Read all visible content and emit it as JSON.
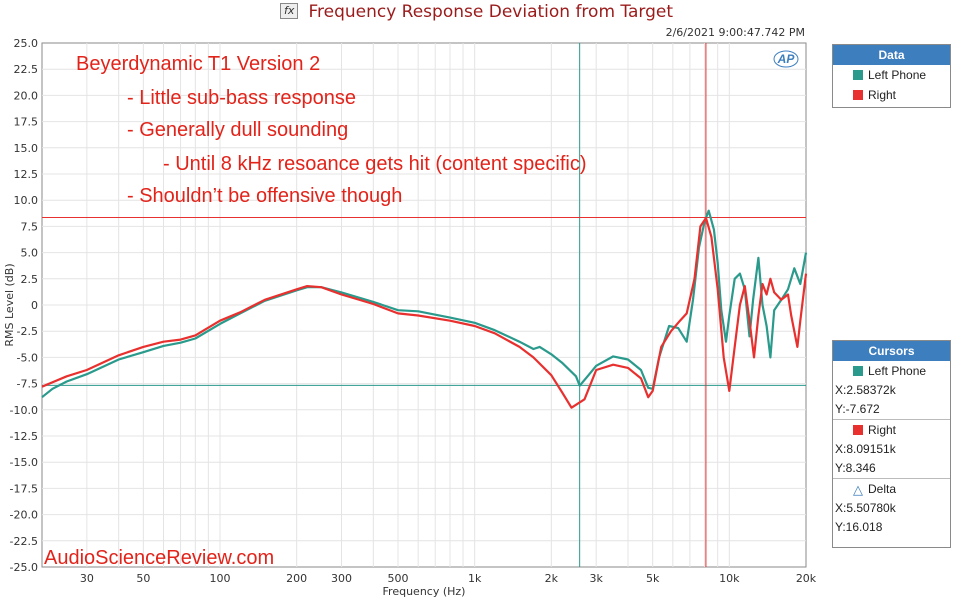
{
  "title": "Frequency Response Deviation from Target",
  "title_icon": "fx",
  "timestamp": "2/6/2021 9:00:47.742 PM",
  "ap_logo": "AP",
  "watermark": "AudioScienceReview.com",
  "annotations": [
    "Beyerdynamic T1 Version 2",
    "- Little sub-bass response",
    "- Generally dull sounding",
    "- Until 8 kHz resoance gets hit (content specific)",
    "- Shouldn’t be offensive though"
  ],
  "legend": {
    "title": "Data",
    "items": [
      {
        "label": "Left Phone",
        "color": "#2a9a8c"
      },
      {
        "label": "Right",
        "color": "#e8312f"
      }
    ]
  },
  "cursors": {
    "title": "Cursors",
    "groups": [
      {
        "label": "Left Phone",
        "color": "#2a9a8c",
        "x": "X:2.58372k",
        "y": "Y:-7.672"
      },
      {
        "label": "Right",
        "color": "#e8312f",
        "x": "X:8.09151k",
        "y": "Y:8.346"
      },
      {
        "label": "Delta",
        "icon": "delta-triangle-icon",
        "x": "X:5.50780k",
        "y": "Y:16.018"
      }
    ]
  },
  "chart_data": {
    "type": "line",
    "xlabel": "Frequency (Hz)",
    "ylabel": "RMS Level (dB)",
    "xscale": "log",
    "xlim": [
      20,
      20000
    ],
    "ylim": [
      -25,
      25
    ],
    "x_ticks": [
      {
        "v": 30,
        "label": "30"
      },
      {
        "v": 50,
        "label": "50"
      },
      {
        "v": 100,
        "label": "100"
      },
      {
        "v": 200,
        "label": "200"
      },
      {
        "v": 300,
        "label": "300"
      },
      {
        "v": 500,
        "label": "500"
      },
      {
        "v": 1000,
        "label": "1k"
      },
      {
        "v": 2000,
        "label": "2k"
      },
      {
        "v": 3000,
        "label": "3k"
      },
      {
        "v": 5000,
        "label": "5k"
      },
      {
        "v": 10000,
        "label": "10k"
      },
      {
        "v": 20000,
        "label": "20k"
      }
    ],
    "y_ticks": [
      {
        "v": 25,
        "label": "25.0"
      },
      {
        "v": 22.5,
        "label": "22.5"
      },
      {
        "v": 20,
        "label": "20.0"
      },
      {
        "v": 17.5,
        "label": "17.5"
      },
      {
        "v": 15,
        "label": "15.0"
      },
      {
        "v": 12.5,
        "label": "12.5"
      },
      {
        "v": 10,
        "label": "10.0"
      },
      {
        "v": 7.5,
        "label": "7.5"
      },
      {
        "v": 5,
        "label": "5.0"
      },
      {
        "v": 2.5,
        "label": "2.5"
      },
      {
        "v": 0,
        "label": "0"
      },
      {
        "v": -2.5,
        "label": "-2.5"
      },
      {
        "v": -5,
        "label": "-5.0"
      },
      {
        "v": -7.5,
        "label": "-7.5"
      },
      {
        "v": -10,
        "label": "-10.0"
      },
      {
        "v": -12.5,
        "label": "-12.5"
      },
      {
        "v": -15,
        "label": "-15.0"
      },
      {
        "v": -17.5,
        "label": "-17.5"
      },
      {
        "v": -20,
        "label": "-20.0"
      },
      {
        "v": -22.5,
        "label": "-22.5"
      },
      {
        "v": -25,
        "label": "-25.0"
      }
    ],
    "cursor_lines": [
      {
        "x": 2583.72,
        "y": -7.672,
        "color": "#2a9a8c"
      },
      {
        "x": 8091.51,
        "y": 8.346,
        "color": "#e8312f"
      }
    ],
    "series": [
      {
        "name": "Left Phone",
        "color": "#2a9a8c",
        "points": [
          [
            20,
            -8.8
          ],
          [
            22,
            -8.0
          ],
          [
            25,
            -7.3
          ],
          [
            30,
            -6.6
          ],
          [
            40,
            -5.2
          ],
          [
            50,
            -4.5
          ],
          [
            60,
            -3.9
          ],
          [
            70,
            -3.6
          ],
          [
            80,
            -3.2
          ],
          [
            100,
            -1.8
          ],
          [
            120,
            -0.8
          ],
          [
            150,
            0.4
          ],
          [
            200,
            1.4
          ],
          [
            220,
            1.7
          ],
          [
            250,
            1.7
          ],
          [
            300,
            1.2
          ],
          [
            400,
            0.3
          ],
          [
            500,
            -0.5
          ],
          [
            600,
            -0.6
          ],
          [
            800,
            -1.2
          ],
          [
            1000,
            -1.7
          ],
          [
            1200,
            -2.4
          ],
          [
            1500,
            -3.5
          ],
          [
            1700,
            -4.2
          ],
          [
            1800,
            -4.0
          ],
          [
            2000,
            -4.7
          ],
          [
            2200,
            -5.5
          ],
          [
            2500,
            -6.8
          ],
          [
            2584,
            -7.7
          ],
          [
            2800,
            -6.7
          ],
          [
            3000,
            -5.8
          ],
          [
            3500,
            -4.9
          ],
          [
            4000,
            -5.2
          ],
          [
            4500,
            -6.2
          ],
          [
            4800,
            -7.9
          ],
          [
            5000,
            -8.0
          ],
          [
            5300,
            -5.0
          ],
          [
            5800,
            -2.0
          ],
          [
            6300,
            -2.2
          ],
          [
            6800,
            -3.5
          ],
          [
            7200,
            0.5
          ],
          [
            7600,
            5.5
          ],
          [
            8000,
            8.0
          ],
          [
            8300,
            9.0
          ],
          [
            8700,
            7.2
          ],
          [
            9000,
            4.0
          ],
          [
            9300,
            -0.5
          ],
          [
            9700,
            -3.5
          ],
          [
            10000,
            -1.0
          ],
          [
            10500,
            2.5
          ],
          [
            11000,
            3.0
          ],
          [
            11500,
            1.5
          ],
          [
            12000,
            -3.0
          ],
          [
            12400,
            0.5
          ],
          [
            13000,
            4.5
          ],
          [
            13500,
            0.0
          ],
          [
            14000,
            -2.0
          ],
          [
            14500,
            -5.0
          ],
          [
            15000,
            -0.5
          ],
          [
            16000,
            0.5
          ],
          [
            17000,
            1.5
          ],
          [
            18000,
            3.5
          ],
          [
            19000,
            2.0
          ],
          [
            20000,
            5.0
          ]
        ]
      },
      {
        "name": "Right",
        "color": "#e8312f",
        "points": [
          [
            20,
            -7.8
          ],
          [
            25,
            -6.8
          ],
          [
            30,
            -6.2
          ],
          [
            40,
            -4.8
          ],
          [
            50,
            -4.0
          ],
          [
            60,
            -3.5
          ],
          [
            70,
            -3.3
          ],
          [
            80,
            -2.9
          ],
          [
            100,
            -1.5
          ],
          [
            120,
            -0.7
          ],
          [
            150,
            0.5
          ],
          [
            200,
            1.5
          ],
          [
            220,
            1.8
          ],
          [
            250,
            1.7
          ],
          [
            300,
            1.0
          ],
          [
            400,
            0.1
          ],
          [
            500,
            -0.8
          ],
          [
            600,
            -1.0
          ],
          [
            800,
            -1.5
          ],
          [
            1000,
            -2.0
          ],
          [
            1200,
            -2.7
          ],
          [
            1500,
            -4.0
          ],
          [
            1700,
            -5.0
          ],
          [
            2000,
            -6.7
          ],
          [
            2200,
            -8.3
          ],
          [
            2400,
            -9.8
          ],
          [
            2700,
            -9.0
          ],
          [
            3000,
            -6.2
          ],
          [
            3500,
            -5.7
          ],
          [
            4000,
            -6.0
          ],
          [
            4500,
            -7.0
          ],
          [
            4800,
            -8.8
          ],
          [
            5000,
            -8.2
          ],
          [
            5400,
            -4.0
          ],
          [
            5900,
            -2.5
          ],
          [
            6400,
            -1.5
          ],
          [
            6800,
            -0.8
          ],
          [
            7300,
            2.5
          ],
          [
            7700,
            7.5
          ],
          [
            8100,
            8.3
          ],
          [
            8500,
            6.5
          ],
          [
            9000,
            1.5
          ],
          [
            9500,
            -5.0
          ],
          [
            10000,
            -8.2
          ],
          [
            10500,
            -4.0
          ],
          [
            11000,
            0.0
          ],
          [
            11500,
            1.8
          ],
          [
            12000,
            -1.5
          ],
          [
            12500,
            -5.0
          ],
          [
            13000,
            -1.0
          ],
          [
            13500,
            2.0
          ],
          [
            14000,
            1.0
          ],
          [
            14500,
            2.5
          ],
          [
            15000,
            1.2
          ],
          [
            16000,
            0.5
          ],
          [
            17000,
            1.0
          ],
          [
            17500,
            -1.0
          ],
          [
            18500,
            -4.0
          ],
          [
            19000,
            -1.5
          ],
          [
            20000,
            3.0
          ]
        ]
      }
    ]
  }
}
